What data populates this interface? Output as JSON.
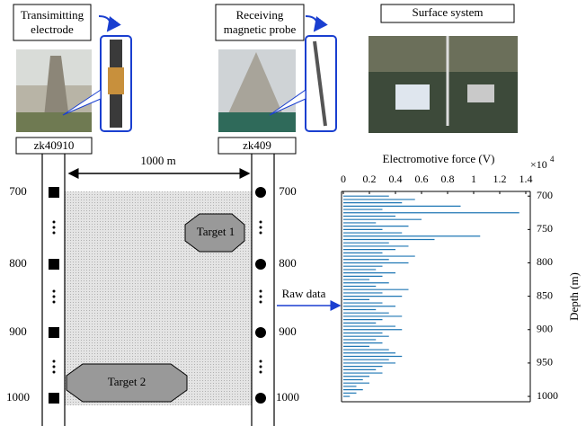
{
  "labels": {
    "transmitter": [
      "Transimitting",
      "electrode"
    ],
    "receiver": [
      "Receiving",
      "magnetic probe"
    ],
    "surface": "Surface system",
    "left_well": "zk40910",
    "right_well": "zk409",
    "distance": "1000 m",
    "target_1": "Target 1",
    "target_2": "Target 2",
    "raw_data": "Raw data"
  },
  "depths": [
    "700",
    "800",
    "900",
    "1000"
  ],
  "chart_data": {
    "type": "stem",
    "x_label": "Depth (m)",
    "y_label": "Electromotive force (V)",
    "multiplier": "×10",
    "multiplier_exponent": "4",
    "color": "#1f77b4",
    "x": [
      700,
      705,
      710,
      715,
      720,
      725,
      730,
      735,
      740,
      745,
      750,
      755,
      760,
      765,
      770,
      775,
      780,
      785,
      790,
      795,
      800,
      805,
      810,
      815,
      820,
      825,
      830,
      835,
      840,
      845,
      850,
      855,
      860,
      865,
      870,
      875,
      880,
      885,
      890,
      895,
      900,
      905,
      910,
      915,
      920,
      925,
      930,
      935,
      940,
      945,
      950,
      955,
      960,
      965,
      970,
      975,
      980,
      985,
      990,
      995,
      1000
    ],
    "values": [
      0.35,
      0.55,
      0.45,
      0.9,
      0.3,
      1.35,
      0.4,
      0.6,
      0.25,
      0.5,
      0.3,
      0.45,
      1.05,
      0.7,
      0.35,
      0.5,
      0.4,
      0.3,
      0.55,
      0.35,
      0.5,
      0.3,
      0.25,
      0.4,
      0.3,
      0.2,
      0.35,
      0.25,
      0.5,
      0.3,
      0.45,
      0.2,
      0.3,
      0.4,
      0.25,
      0.35,
      0.45,
      0.3,
      0.25,
      0.4,
      0.45,
      0.3,
      0.35,
      0.25,
      0.3,
      0.2,
      0.35,
      0.4,
      0.45,
      0.35,
      0.4,
      0.3,
      0.25,
      0.3,
      0.2,
      0.15,
      0.2,
      0.1,
      0.15,
      0.1,
      0.05
    ],
    "xlim": [
      693,
      1008
    ],
    "xticks": [
      700,
      750,
      800,
      850,
      900,
      950,
      1000
    ],
    "ylim": [
      0,
      1.4
    ],
    "yticks": [
      0,
      0.2,
      0.4,
      0.6,
      0.8,
      1,
      1.2,
      1.4
    ]
  }
}
